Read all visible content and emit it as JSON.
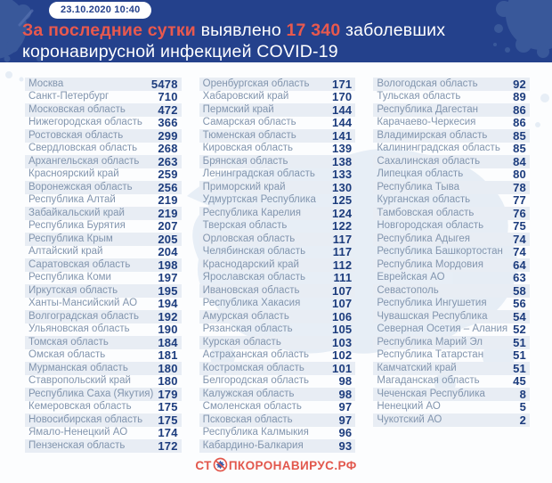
{
  "header": {
    "datetime": "23.10.2020 10:40",
    "title_accent": "За последние сутки",
    "title_mid": "выявлено",
    "title_count": "17 340",
    "title_tail": "заболевших",
    "title_line2": "коронавирусной инфекцией COVID-19"
  },
  "footer": {
    "logo_prefix": "СТ",
    "logo_suffix": "ПКОРОНАВИРУС.РФ"
  },
  "colors": {
    "header_bg": "#24418C",
    "accent_red": "#E8594E",
    "stripe": "#E8EDF4",
    "region_text": "#8295AE",
    "value_text": "#1C3C7D",
    "logo_red": "#E2574C"
  },
  "chart_data": {
    "type": "table",
    "title": "За последние сутки выявлено 17 340 заболевших коронавирусной инфекцией COVID-19",
    "datetime": "23.10.2020 10:40",
    "total_new_cases": 17340,
    "columns": [
      {
        "rows": [
          [
            "Москва",
            5478
          ],
          [
            "Санкт-Петербург",
            710
          ],
          [
            "Московская область",
            472
          ],
          [
            "Нижегородская область",
            366
          ],
          [
            "Ростовская область",
            299
          ],
          [
            "Свердловская область",
            268
          ],
          [
            "Архангельская область",
            263
          ],
          [
            "Красноярский край",
            259
          ],
          [
            "Воронежская область",
            256
          ],
          [
            "Республика Алтай",
            219
          ],
          [
            "Забайкальский край",
            219
          ],
          [
            "Республика Бурятия",
            207
          ],
          [
            "Республика Крым",
            205
          ],
          [
            "Алтайский край",
            204
          ],
          [
            "Саратовская область",
            198
          ],
          [
            "Республика Коми",
            197
          ],
          [
            "Иркутская область",
            195
          ],
          [
            "Ханты-Мансийский АО",
            194
          ],
          [
            "Волгоградская область",
            192
          ],
          [
            "Ульяновская область",
            190
          ],
          [
            "Томская область",
            184
          ],
          [
            "Омская область",
            181
          ],
          [
            "Мурманская область",
            180
          ],
          [
            "Ставропольский край",
            180
          ],
          [
            "Республика Саха (Якутия)",
            179
          ],
          [
            "Кемеровская область",
            175
          ],
          [
            "Новосибирская область",
            175
          ],
          [
            "Ямало-Ненецкий АО",
            174
          ],
          [
            "Пензенская область",
            172
          ]
        ]
      },
      {
        "rows": [
          [
            "Оренбургская область",
            171
          ],
          [
            "Хабаровский край",
            170
          ],
          [
            "Пермский край",
            144
          ],
          [
            "Самарская область",
            144
          ],
          [
            "Тюменская область",
            141
          ],
          [
            "Кировская область",
            139
          ],
          [
            "Брянская область",
            138
          ],
          [
            "Ленинградская область",
            133
          ],
          [
            "Приморский край",
            130
          ],
          [
            "Удмуртская Республика",
            125
          ],
          [
            "Республика Карелия",
            124
          ],
          [
            "Тверская область",
            122
          ],
          [
            "Орловская область",
            117
          ],
          [
            "Челябинская область",
            117
          ],
          [
            "Краснодарский край",
            112
          ],
          [
            "Ярославская область",
            111
          ],
          [
            "Ивановская область",
            107
          ],
          [
            "Республика Хакасия",
            107
          ],
          [
            "Амурская область",
            106
          ],
          [
            "Рязанская область",
            105
          ],
          [
            "Курская область",
            103
          ],
          [
            "Астраханская область",
            102
          ],
          [
            "Костромская область",
            101
          ],
          [
            "Белгородская область",
            98
          ],
          [
            "Калужская область",
            98
          ],
          [
            "Смоленская область",
            97
          ],
          [
            "Псковская область",
            97
          ],
          [
            "Республика Калмыкия",
            96
          ],
          [
            "Кабардино-Балкария",
            93
          ]
        ]
      },
      {
        "rows": [
          [
            "Вологодская область",
            92
          ],
          [
            "Тульская область",
            89
          ],
          [
            "Республика Дагестан",
            86
          ],
          [
            "Карачаево-Черкесия",
            86
          ],
          [
            "Владимирская область",
            85
          ],
          [
            "Калининградская область",
            85
          ],
          [
            "Сахалинская область",
            84
          ],
          [
            "Липецкая область",
            80
          ],
          [
            "Республика Тыва",
            78
          ],
          [
            "Курганская область",
            77
          ],
          [
            "Тамбовская область",
            76
          ],
          [
            "Новгородская область",
            75
          ],
          [
            "Республика Адыгея",
            74
          ],
          [
            "Республика Башкортостан",
            74
          ],
          [
            "Республика Мордовия",
            64
          ],
          [
            "Еврейская АО",
            63
          ],
          [
            "Севастополь",
            58
          ],
          [
            "Республика Ингушетия",
            56
          ],
          [
            "Чувашская Республика",
            54
          ],
          [
            "Северная Осетия – Алания",
            52
          ],
          [
            "Республика Марий Эл",
            51
          ],
          [
            "Республика Татарстан",
            51
          ],
          [
            "Камчатский край",
            51
          ],
          [
            "Магаданская область",
            45
          ],
          [
            "Чеченская Республика",
            8
          ],
          [
            "Ненецкий АО",
            5
          ],
          [
            "Чукотский АО",
            2
          ]
        ]
      }
    ]
  }
}
